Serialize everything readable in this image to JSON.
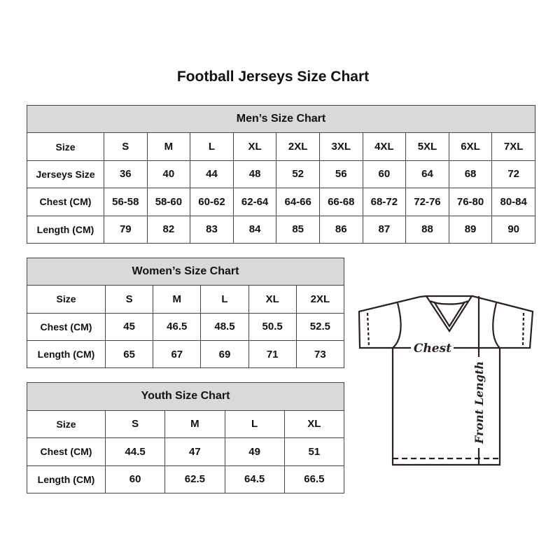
{
  "title": "Football Jerseys Size Chart",
  "men": {
    "heading": "Men’s Size Chart",
    "rows": [
      [
        "Size",
        "S",
        "M",
        "L",
        "XL",
        "2XL",
        "3XL",
        "4XL",
        "5XL",
        "6XL",
        "7XL"
      ],
      [
        "Jerseys Size",
        "36",
        "40",
        "44",
        "48",
        "52",
        "56",
        "60",
        "64",
        "68",
        "72"
      ],
      [
        "Chest (CM)",
        "56-58",
        "58-60",
        "60-62",
        "62-64",
        "64-66",
        "66-68",
        "68-72",
        "72-76",
        "76-80",
        "80-84"
      ],
      [
        "Length (CM)",
        "79",
        "82",
        "83",
        "84",
        "85",
        "86",
        "87",
        "88",
        "89",
        "90"
      ]
    ]
  },
  "women": {
    "heading": "Women’s Size Chart",
    "rows": [
      [
        "Size",
        "S",
        "M",
        "L",
        "XL",
        "2XL"
      ],
      [
        "Chest (CM)",
        "45",
        "46.5",
        "48.5",
        "50.5",
        "52.5"
      ],
      [
        "Length (CM)",
        "65",
        "67",
        "69",
        "71",
        "73"
      ]
    ]
  },
  "youth": {
    "heading": "Youth Size Chart",
    "rows": [
      [
        "Size",
        "S",
        "M",
        "L",
        "XL"
      ],
      [
        "Chest (CM)",
        "44.5",
        "47",
        "49",
        "51"
      ],
      [
        "Length (CM)",
        "60",
        "62.5",
        "64.5",
        "66.5"
      ]
    ]
  },
  "diagram": {
    "chest_label": "Chest",
    "length_label": "Front Length"
  },
  "colors": {
    "header_bg": "#d9d9d9",
    "border": "#444444"
  }
}
